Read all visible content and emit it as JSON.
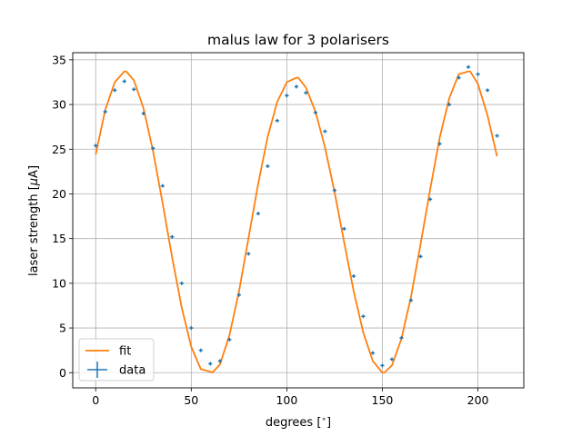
{
  "chart_data": {
    "type": "scatter",
    "title": "malus law for 3 polarisers",
    "xlabel": "degrees [$^\\circ$]",
    "ylabel": "laser strength [$\\mu$A]",
    "xlim": [
      -12,
      224
    ],
    "ylim": [
      -1.7,
      35.8
    ],
    "xticks": [
      0,
      50,
      100,
      150,
      200
    ],
    "yticks": [
      0,
      5,
      10,
      15,
      20,
      25,
      30,
      35
    ],
    "grid": true,
    "legend_position": "lower-left",
    "legend": [
      "fit",
      "data"
    ],
    "colors": {
      "fit": "#ff7f0e",
      "data": "#1f77b4"
    },
    "series": [
      {
        "name": "data",
        "style": "errorbar",
        "x": [
          0,
          5,
          10,
          15,
          20,
          25,
          30,
          35,
          40,
          45,
          50,
          55,
          60,
          65,
          70,
          75,
          80,
          85,
          90,
          95,
          100,
          105,
          110,
          115,
          120,
          125,
          130,
          135,
          140,
          145,
          150,
          155,
          160,
          165,
          170,
          175,
          180,
          185,
          190,
          195,
          200,
          205,
          210
        ],
        "y": [
          25.4,
          29.2,
          31.6,
          32.6,
          31.7,
          29.0,
          25.1,
          20.9,
          15.2,
          10.0,
          5.0,
          2.5,
          1.0,
          1.3,
          3.7,
          8.7,
          13.3,
          17.8,
          23.1,
          28.2,
          31.0,
          32.0,
          31.3,
          29.1,
          27.0,
          20.4,
          16.1,
          10.8,
          6.3,
          2.2,
          0.8,
          1.5,
          3.9,
          8.1,
          13.0,
          19.4,
          25.6,
          30.0,
          33.0,
          34.2,
          33.4,
          31.6,
          26.5
        ],
        "xerr": 1.0,
        "yerr": 0.2
      },
      {
        "name": "fit",
        "style": "line",
        "x": [
          0,
          5,
          10,
          15,
          16,
          20,
          25,
          30,
          35,
          40,
          45,
          50,
          55,
          60,
          61,
          65,
          70,
          75,
          80,
          85,
          90,
          95,
          100,
          105,
          106,
          110,
          115,
          120,
          125,
          130,
          135,
          140,
          145,
          150,
          151,
          155,
          160,
          165,
          170,
          175,
          180,
          185,
          190,
          195,
          196,
          200,
          205,
          210
        ],
        "y": [
          24.4,
          29.4,
          32.5,
          33.7,
          33.7,
          32.7,
          29.6,
          24.8,
          19.0,
          12.9,
          7.3,
          2.9,
          0.4,
          0.1,
          0.0,
          0.9,
          4.2,
          9.1,
          15.1,
          21.1,
          26.4,
          30.3,
          32.5,
          33.0,
          33.0,
          31.9,
          29.2,
          25.2,
          20.2,
          14.6,
          9.1,
          4.5,
          1.3,
          0.0,
          0.0,
          0.8,
          3.8,
          8.5,
          14.4,
          20.5,
          26.3,
          30.7,
          33.4,
          33.7,
          33.7,
          32.3,
          28.8,
          24.2
        ]
      }
    ]
  }
}
